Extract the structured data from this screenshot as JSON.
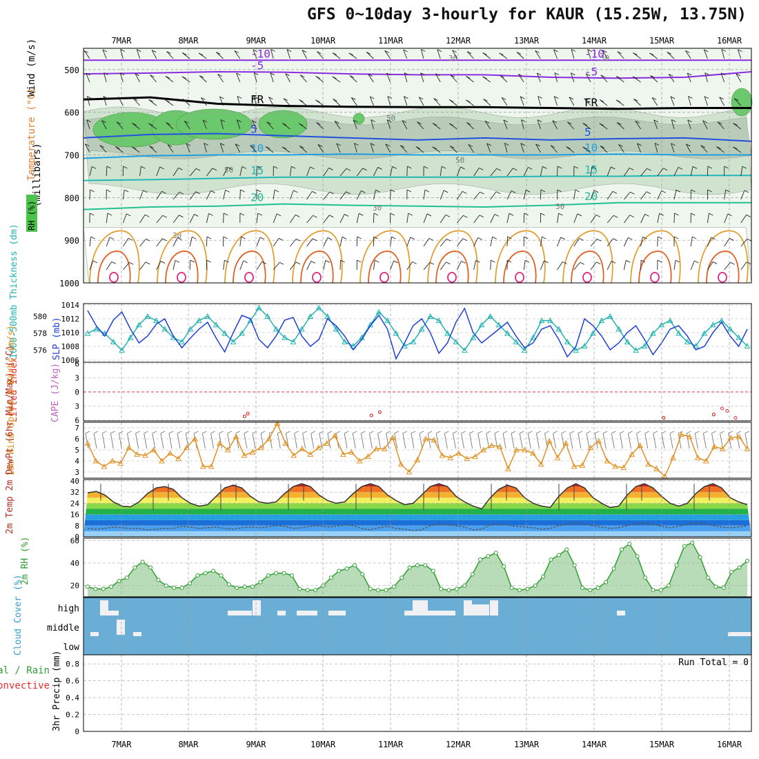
{
  "title": "GFS 0~10day 3-hourly for KAUR (15.25W, 13.75N)",
  "chart_data": [
    {
      "type": "area",
      "panel": "upper-air",
      "ylabel": "(millibars)",
      "legend_labels": [
        "Wind (m/s)",
        "Temperature (°C)",
        "RH (%)"
      ],
      "dates": [
        "7MAR",
        "8MAR",
        "9MAR",
        "10MAR",
        "11MAR",
        "12MAR",
        "13MAR",
        "14MAR",
        "15MAR",
        "16MAR"
      ],
      "yticks": [
        500,
        600,
        700,
        800,
        900,
        1000
      ],
      "ylim": [
        1000,
        450
      ],
      "isotherms": [
        {
          "label": "-10",
          "pressure": [
            478,
            478,
            478,
            478,
            478,
            478,
            478,
            478,
            478,
            478,
            478
          ]
        },
        {
          "label": "-5",
          "pressure": [
            510,
            508,
            505,
            506,
            510,
            512,
            512,
            518,
            520,
            518,
            505
          ]
        },
        {
          "label": "FR",
          "pressure": [
            570,
            565,
            580,
            585,
            587,
            588,
            588,
            590,
            592,
            590,
            590
          ]
        },
        {
          "label": "5",
          "pressure": [
            660,
            652,
            650,
            655,
            660,
            665,
            660,
            665,
            662,
            660,
            668
          ]
        },
        {
          "label": "10",
          "pressure": [
            708,
            702,
            700,
            700,
            698,
            700,
            700,
            700,
            698,
            700,
            700
          ]
        },
        {
          "label": "15",
          "pressure": [
            760,
            758,
            755,
            752,
            752,
            752,
            752,
            750,
            750,
            748,
            748
          ]
        },
        {
          "label": "20",
          "pressure": [
            828,
            822,
            820,
            815,
            818,
            820,
            822,
            818,
            812,
            812,
            812
          ]
        }
      ],
      "rh_contour_labels": [
        "30",
        "50"
      ],
      "color_temp_lines": "#8a2be2"
    },
    {
      "type": "line",
      "panel": "thickness-slp",
      "ylabel_left": "1000-500mb Thickness (dm)",
      "ylabel_right": "SLP (mb)",
      "left_ticks": [
        "580",
        "578",
        "576"
      ],
      "right_ticks": [
        "1014",
        "1012",
        "1010",
        "1008",
        "1006"
      ],
      "series": [
        {
          "name": "SLP (mb)",
          "color": "#1f3fd6",
          "values": [
            1013.2,
            1011,
            1009.5,
            1011.8,
            1013.0,
            1010.5,
            1008.5,
            1009.5,
            1011.2,
            1012.0,
            1009.5,
            1007.8,
            1009.2,
            1010.5,
            1011.5,
            1009.2,
            1007.2,
            1010.0,
            1012.5,
            1012.0,
            1009.0,
            1007.8,
            1009.5,
            1011.8,
            1012.2,
            1009.5,
            1008.0,
            1009.0,
            1012.0,
            1011.0,
            1009.5,
            1007.5,
            1009.0,
            1011.0,
            1012.5,
            1010.5,
            1006.2,
            1008.5,
            1011.0,
            1012.0,
            1010.0,
            1007.0,
            1008.5,
            1011.5,
            1013.5,
            1010.0,
            1008.5,
            1009.5,
            1010.5,
            1011.5,
            1009.5,
            1007.8,
            1008.5,
            1010.5,
            1011.0,
            1009.0,
            1006.5,
            1008.0,
            1012.0,
            1011.0,
            1009.5,
            1007.5,
            1008.5,
            1010.0,
            1011.0,
            1009.0,
            1006.8,
            1008.5,
            1010.5,
            1011.0,
            1009.5,
            1007.5,
            1008.0,
            1010.0,
            1011.5,
            1009.5,
            1008.0,
            1010.5
          ]
        },
        {
          "name": "Thickness (dm)",
          "color": "#20b2b0",
          "values": [
            578.0,
            578.5,
            578.0,
            577.0,
            576.0,
            577.5,
            579.0,
            580.0,
            579.5,
            578.5,
            577.5,
            577.0,
            578.5,
            579.5,
            580.0,
            579.0,
            578.0,
            577.0,
            578.0,
            579.5,
            581.0,
            580.0,
            578.5,
            577.5,
            577.0,
            578.5,
            580.0,
            581.0,
            580.0,
            578.5,
            577.0,
            576.5,
            577.5,
            579.0,
            580.5,
            579.5,
            578.0,
            576.5,
            577.0,
            578.5,
            580.0,
            579.5,
            578.0,
            577.0,
            576.0,
            577.5,
            579.0,
            580.0,
            579.0,
            578.0,
            577.0,
            576.0,
            577.5,
            579.5,
            579.5,
            578.5,
            577.0,
            576.0,
            576.5,
            578.0,
            579.5,
            580.0,
            578.5,
            577.0,
            576.0,
            576.5,
            578.0,
            579.0,
            579.5,
            578.0,
            577.0,
            576.5,
            578.0,
            579.0,
            579.5,
            578.5,
            577.5,
            576.5
          ]
        }
      ]
    },
    {
      "type": "line",
      "panel": "stability",
      "ylabel_left": "Lifted Index",
      "ylabel_right": "CAPE (J/kg)",
      "ticks": [
        "-6",
        "-3",
        "0",
        "3",
        "6"
      ],
      "series": [
        {
          "name": "Lifted Index",
          "color": "#e03030",
          "points": [
            [
              8.9,
              5.2
            ],
            [
              9.1,
              4.6
            ],
            [
              16.5,
              5.0
            ],
            [
              17.0,
              4.3
            ],
            [
              34.0,
              5.5
            ],
            [
              37.0,
              4.8
            ],
            [
              37.5,
              3.5
            ],
            [
              37.8,
              4.0
            ],
            [
              38.3,
              5.5
            ]
          ]
        }
      ]
    },
    {
      "type": "line",
      "panel": "wind10m",
      "ylabel": "10m Wind Speed & Barbs (m/s)",
      "ticks": [
        "7",
        "6",
        "5",
        "4",
        "3"
      ],
      "ylim": [
        2.5,
        7.5
      ],
      "series": [
        {
          "name": "10m Wind Speed",
          "color": "#e09020",
          "values": [
            5.6,
            4.0,
            3.5,
            4.0,
            3.8,
            5.2,
            4.6,
            4.5,
            5.0,
            4.0,
            4.7,
            4.2,
            5.2,
            6.0,
            3.5,
            3.5,
            5.6,
            5.0,
            6.2,
            4.5,
            4.8,
            5.2,
            6.0,
            7.4,
            5.6,
            4.5,
            5.1,
            4.6,
            5.2,
            5.6,
            6.3,
            4.6,
            4.8,
            4.0,
            4.4,
            5.1,
            5.1,
            6.1,
            3.7,
            3.0,
            4.1,
            6.0,
            5.9,
            4.5,
            4.3,
            4.7,
            4.2,
            4.4,
            5.0,
            5.4,
            5.3,
            3.3,
            5.0,
            5.0,
            4.7,
            3.7,
            5.8,
            4.3,
            5.6,
            3.5,
            3.6,
            5.2,
            5.8,
            4.0,
            3.5,
            3.4,
            4.6,
            5.4,
            3.7,
            3.3,
            2.6,
            4.3,
            6.4,
            6.2,
            4.3,
            4.0,
            5.3,
            5.1,
            6.1,
            6.2,
            5.1
          ]
        }
      ]
    },
    {
      "type": "area",
      "panel": "temp2m",
      "ylabel": "2m Temp 2m DewPt (6hr Min/Max) (°C)",
      "ticks": [
        "40",
        "32",
        "24",
        "16",
        "8",
        "0"
      ],
      "ylim": [
        0,
        40
      ],
      "series": [
        {
          "name": "2m Temp",
          "color": "#333333",
          "values": [
            31.5,
            32.5,
            30,
            25,
            22,
            21.5,
            25,
            31,
            35,
            36,
            34,
            28,
            24,
            22,
            23,
            29,
            35,
            37,
            35,
            29,
            25,
            24,
            25,
            31,
            36,
            38,
            36,
            30,
            26,
            24,
            25,
            31,
            36,
            38,
            36,
            30,
            26,
            23,
            24,
            30,
            36,
            38,
            36,
            29,
            25,
            22,
            20,
            28,
            34,
            37,
            35,
            28,
            24,
            22,
            21,
            29,
            35,
            38,
            35,
            28,
            24,
            21,
            22,
            30,
            36,
            38,
            35,
            29,
            24,
            22,
            24,
            31,
            36,
            38,
            35,
            28,
            25,
            23
          ]
        },
        {
          "name": "2m DewPt",
          "color": "#555555",
          "values": [
            6,
            5.5,
            6,
            7,
            6.5,
            6,
            6,
            5,
            5.5,
            6,
            6,
            7.5,
            7,
            6,
            6.5,
            7,
            6,
            5.5,
            6.5,
            7,
            6.5,
            7,
            8,
            7.5,
            6,
            6.5,
            7.5,
            8,
            7,
            7.5,
            8.5,
            8,
            6,
            5,
            6.5,
            7.5,
            6,
            5.5,
            4.5,
            5,
            8,
            9,
            8.5,
            8,
            7,
            5,
            5.5,
            8.5,
            9,
            8.5,
            7.5,
            7,
            6.5,
            5.5,
            6,
            8,
            9,
            10,
            9,
            8,
            7,
            6,
            6.5,
            8,
            9.5,
            10,
            9,
            7.5,
            6.5,
            7.5,
            9,
            10,
            9.5,
            8,
            7,
            6.5,
            7,
            8
          ]
        }
      ]
    },
    {
      "type": "area",
      "panel": "rh2m",
      "ylabel": "2m RH (%)",
      "ticks": [
        "60",
        "40",
        "20"
      ],
      "ylim": [
        10,
        62
      ],
      "series": [
        {
          "name": "2m RH",
          "color": "#2e9e2e",
          "values": [
            19,
            17,
            17,
            19,
            24,
            27,
            36,
            41,
            36,
            25,
            20,
            18,
            18,
            22,
            29,
            31,
            33,
            29,
            21,
            18,
            19,
            19,
            23,
            29,
            31,
            31,
            29,
            17,
            16,
            16,
            20,
            27,
            33,
            35,
            38,
            30,
            17,
            16,
            16,
            19,
            27,
            36,
            38,
            38,
            33,
            17,
            16,
            17,
            20,
            30,
            43,
            46,
            49,
            37,
            18,
            16,
            17,
            20,
            28,
            43,
            47,
            52,
            38,
            18,
            16,
            18,
            23,
            35,
            52,
            57,
            46,
            27,
            16,
            16,
            20,
            38,
            55,
            58,
            45,
            27,
            19,
            18,
            32,
            36,
            42
          ]
        }
      ]
    },
    {
      "type": "bar",
      "panel": "cloud",
      "ylabel": "Cloud Cover (%)",
      "levels": [
        "high",
        "middle",
        "low"
      ],
      "bg_color": "#6aaed6",
      "cloud_color": "#f0f0f5"
    },
    {
      "type": "bar",
      "panel": "precip",
      "ylabel_left": "Total / Rain",
      "ylabel_left2": "Convective",
      "ylabel": "3hr Precip (mm)",
      "ticks": [
        "0.8",
        "0.6",
        "0.4",
        "0.2",
        "0"
      ],
      "run_total": "Run Total = 0"
    }
  ]
}
